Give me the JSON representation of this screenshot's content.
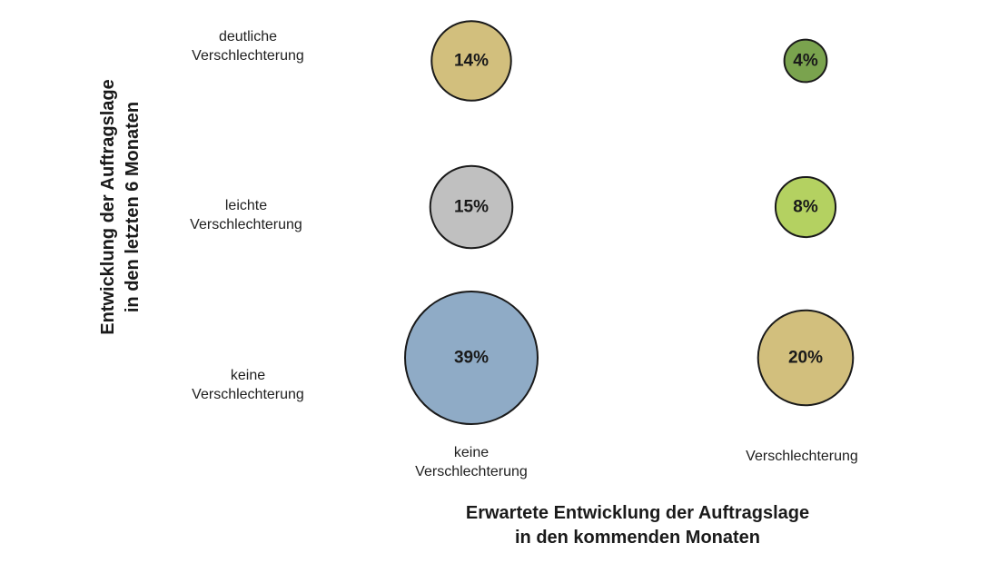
{
  "chart_data": {
    "type": "bubble",
    "title": "",
    "xlabel": "Erwartete Entwicklung der Auftragslage in den kommenden Monaten",
    "ylabel": "Entwicklung der Auftragslage in den letzten 6 Monaten",
    "xlabel_lines": [
      "Erwartete Entwicklung der Auftragslage",
      "in den kommenden Monaten"
    ],
    "ylabel_lines": [
      "Entwicklung der Auftragslage",
      "in den letzten 6 Monaten"
    ],
    "x_categories": [
      {
        "lines": [
          "keine",
          "Verschlechterung"
        ]
      },
      {
        "lines": [
          "Verschlechterung"
        ]
      }
    ],
    "y_categories": [
      {
        "lines": [
          "deutliche",
          "Verschlechterung"
        ]
      },
      {
        "lines": [
          "leichte",
          "Verschlechterung"
        ]
      },
      {
        "lines": [
          "keine",
          "Verschlechterung"
        ]
      }
    ],
    "points": [
      {
        "x": 0,
        "y": 0,
        "value": 14,
        "label": "14%",
        "color": "#d2bf7d"
      },
      {
        "x": 1,
        "y": 0,
        "value": 4,
        "label": "4%",
        "color": "#7aa34e"
      },
      {
        "x": 0,
        "y": 1,
        "value": 15,
        "label": "15%",
        "color": "#c0c0c0"
      },
      {
        "x": 1,
        "y": 1,
        "value": 8,
        "label": "8%",
        "color": "#b4d161"
      },
      {
        "x": 0,
        "y": 2,
        "value": 39,
        "label": "39%",
        "color": "#8fabc6"
      },
      {
        "x": 1,
        "y": 2,
        "value": 20,
        "label": "20%",
        "color": "#d2bf7d"
      }
    ]
  }
}
